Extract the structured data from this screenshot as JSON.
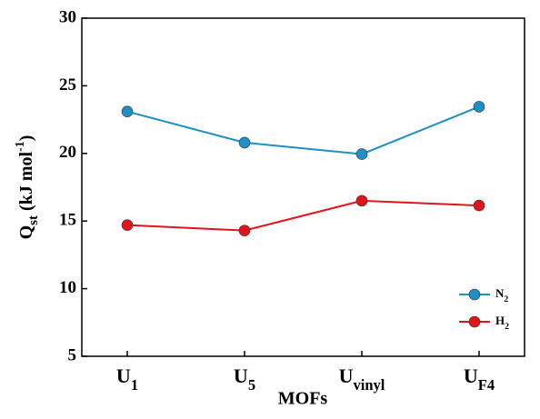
{
  "chart_data": {
    "type": "line",
    "x_label": "MOFs",
    "y_label": "Qst (kJ mol-1)",
    "categories": [
      "U1",
      "U5",
      "Uvinyl",
      "UF4"
    ],
    "series": [
      {
        "name": "N2",
        "color": "#1f8fc4",
        "values": [
          23.1,
          20.8,
          19.95,
          23.45
        ]
      },
      {
        "name": "H2",
        "color": "#e0141b",
        "values": [
          14.7,
          14.3,
          16.5,
          16.15
        ]
      }
    ],
    "ylim": [
      5,
      30
    ],
    "yticks": [
      5,
      10,
      15,
      20,
      25,
      30
    ],
    "legend": "lower right"
  }
}
